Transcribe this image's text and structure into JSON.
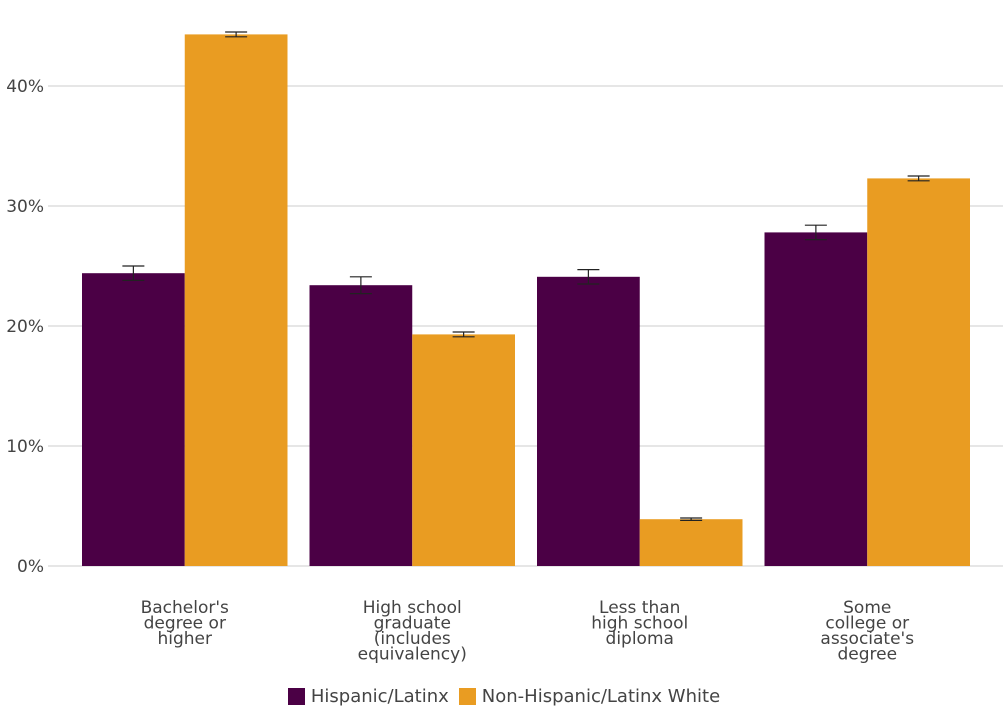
{
  "chart_data": {
    "type": "bar",
    "title": "",
    "xlabel": "",
    "ylabel": "",
    "categories": [
      [
        "Bachelor's",
        "degree or",
        "higher"
      ],
      [
        "High school",
        "graduate",
        "(includes",
        "equivalency)"
      ],
      [
        "Less than",
        "high school",
        "diploma"
      ],
      [
        "Some",
        "college or",
        "associate's",
        "degree"
      ]
    ],
    "series": [
      {
        "name": "Hispanic/Latinx",
        "color": "#4b0045",
        "values": [
          24.4,
          23.4,
          24.1,
          27.8
        ],
        "error": [
          0.6,
          0.7,
          0.6,
          0.6
        ]
      },
      {
        "name": "Non-Hispanic/Latinx White",
        "color": "#e99c22",
        "values": [
          44.3,
          19.3,
          3.9,
          32.3
        ],
        "error": [
          0.2,
          0.2,
          0.1,
          0.2
        ]
      }
    ],
    "ylim": [
      0,
      45
    ],
    "yticks": [
      0,
      10,
      20,
      30,
      40
    ],
    "ytick_labels": [
      "0%",
      "10%",
      "20%",
      "30%",
      "40%"
    ],
    "grid": true,
    "legend_position": "bottom"
  }
}
